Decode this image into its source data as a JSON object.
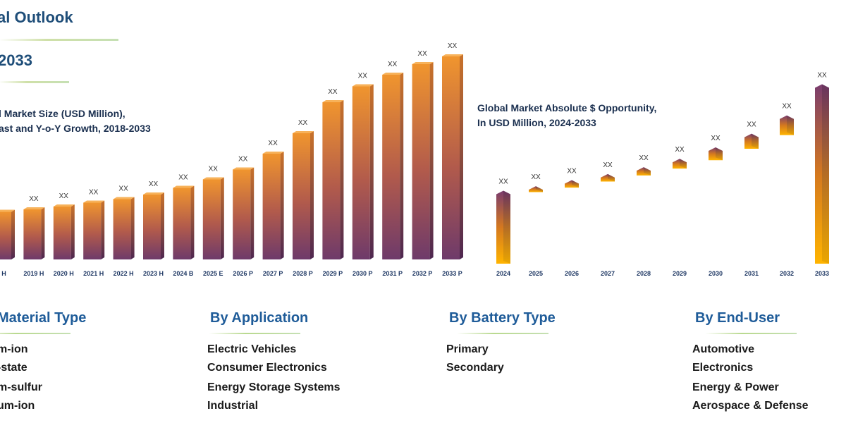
{
  "header": {
    "outlook_title": "al Outlook",
    "year_title": "2033"
  },
  "colors": {
    "title_blue": "#1f4e79",
    "bar_orange": "#f0952e",
    "bar_purple": "#7a3c6e",
    "bar_yellow": "#ffb400"
  },
  "chart_data": [
    {
      "type": "bar",
      "title_lines": [
        "l Market Size (USD Million),",
        "ast and Y-o-Y Growth, 2018-2033"
      ],
      "categories": [
        "H",
        "2019 H",
        "2020 H",
        "2021 H",
        "2022 H",
        "2023 H",
        "2024 B",
        "2025 E",
        "2026 P",
        "2027 P",
        "2028 P",
        "2029 P",
        "2030 P",
        "2031 P",
        "2032 P",
        "2033 P"
      ],
      "values": [
        13.5,
        14.2,
        15.0,
        16.1,
        17.1,
        18.4,
        20.3,
        22.7,
        25.5,
        30.0,
        35.8,
        44.6,
        49.1,
        52.4,
        55.4,
        57.6
      ],
      "data_labels": [
        "",
        "XX",
        "XX",
        "XX",
        "XX",
        "XX",
        "XX",
        "XX",
        "XX",
        "XX",
        "XX",
        "XX",
        "XX",
        "XX",
        "XX",
        "XX"
      ],
      "ylim": [
        0,
        60
      ]
    },
    {
      "type": "bar",
      "title_lines": [
        "Global Market Absolute $ Opportunity,",
        "In USD Million, 2024-2033"
      ],
      "categories": [
        "2024",
        "2025",
        "2026",
        "2027",
        "2028",
        "2029",
        "2030",
        "2031",
        "2032",
        "2033"
      ],
      "bars": [
        {
          "start": 0,
          "end": 47
        },
        {
          "start": 47,
          "end": 50
        },
        {
          "start": 50,
          "end": 54
        },
        {
          "start": 54,
          "end": 58
        },
        {
          "start": 58,
          "end": 62.5
        },
        {
          "start": 62.5,
          "end": 68
        },
        {
          "start": 68,
          "end": 75.5
        },
        {
          "start": 75.5,
          "end": 84.5
        },
        {
          "start": 84.5,
          "end": 96.5
        },
        {
          "start": 0,
          "end": 117
        }
      ],
      "data_labels": [
        "XX",
        "XX",
        "XX",
        "XX",
        "XX",
        "XX",
        "XX",
        "XX",
        "XX",
        "XX"
      ],
      "ylim": [
        0,
        120
      ]
    }
  ],
  "segments": [
    {
      "heading": "Material Type",
      "items": [
        "m-ion",
        "-state",
        "m-sulfur",
        "um-ion"
      ]
    },
    {
      "heading": "By Application",
      "items": [
        "Electric Vehicles",
        "Consumer Electronics",
        "Energy Storage Systems",
        "Industrial"
      ]
    },
    {
      "heading": "By Battery Type",
      "items": [
        "Primary",
        "Secondary"
      ]
    },
    {
      "heading": "By End-User",
      "items": [
        "Automotive",
        "Electronics",
        "Energy & Power",
        "Aerospace & Defense"
      ]
    }
  ]
}
